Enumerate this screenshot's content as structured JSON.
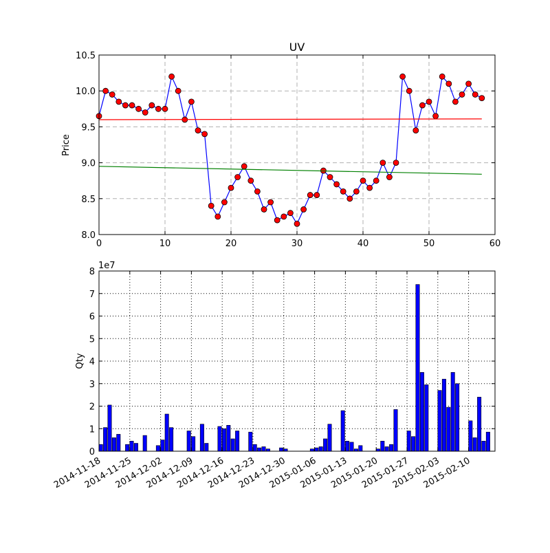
{
  "chart_data": [
    {
      "type": "line",
      "title": "UV",
      "xlabel": "",
      "ylabel": "Price",
      "xlim": [
        0,
        60
      ],
      "ylim": [
        8.0,
        10.5
      ],
      "xticks": [
        "0",
        "10",
        "20",
        "30",
        "40",
        "50",
        "60"
      ],
      "yticks": [
        "8.0",
        "8.5",
        "9.0",
        "9.5",
        "10.0",
        "10.5"
      ],
      "grid": "dashed",
      "series": [
        {
          "style": "line-markers",
          "color": "#0000ff",
          "marker_color": "#ff0000",
          "x": [
            0,
            1,
            2,
            3,
            4,
            5,
            6,
            7,
            8,
            9,
            10,
            11,
            12,
            13,
            14,
            15,
            16,
            17,
            18,
            19,
            20,
            21,
            22,
            23,
            24,
            25,
            26,
            27,
            28,
            29,
            30,
            31,
            32,
            33,
            34,
            35,
            36,
            37,
            38,
            39,
            40,
            41,
            42,
            43,
            44,
            45,
            46,
            47,
            48,
            49,
            50,
            51,
            52,
            53,
            54,
            55,
            56,
            57,
            58
          ],
          "values": [
            9.65,
            10.0,
            9.95,
            9.85,
            9.8,
            9.8,
            9.75,
            9.7,
            9.8,
            9.75,
            9.75,
            10.2,
            10.0,
            9.6,
            9.85,
            9.45,
            9.4,
            8.4,
            8.25,
            8.45,
            8.65,
            8.8,
            8.95,
            8.75,
            8.6,
            8.35,
            8.45,
            8.2,
            8.25,
            8.3,
            8.15,
            8.35,
            8.55,
            8.55,
            8.89,
            8.8,
            8.7,
            8.6,
            8.5,
            8.6,
            8.75,
            8.65,
            8.75,
            9.0,
            8.8,
            9.0,
            10.2,
            10.0,
            9.45,
            9.8,
            9.85,
            9.65,
            10.2,
            10.1,
            9.85,
            9.95,
            10.1,
            9.95,
            9.9
          ]
        },
        {
          "style": "line",
          "color": "#ff0000",
          "x": [
            0,
            58
          ],
          "values": [
            9.6,
            9.61
          ]
        },
        {
          "style": "line",
          "color": "#008000",
          "x": [
            0,
            58
          ],
          "values": [
            8.95,
            8.84
          ]
        }
      ]
    },
    {
      "type": "bar",
      "xlabel": "",
      "ylabel": "Qty",
      "ylim": [
        0,
        8
      ],
      "yticks": [
        "0",
        "1",
        "2",
        "3",
        "4",
        "5",
        "6",
        "7",
        "8"
      ],
      "yscale_label": "1e7",
      "grid": "dotted",
      "color": "#0000ff",
      "x_start": "2014-11-18",
      "x_end": "2015-02-16",
      "xticks": [
        "2014-11-18",
        "2014-11-25",
        "2014-12-02",
        "2014-12-09",
        "2014-12-16",
        "2014-12-23",
        "2014-12-30",
        "2015-01-06",
        "2015-01-13",
        "2015-01-20",
        "2015-01-27",
        "2015-02-03",
        "2015-02-10"
      ],
      "bars": [
        [
          "2014-11-18",
          0.3
        ],
        [
          "2014-11-19",
          1.05
        ],
        [
          "2014-11-20",
          2.05
        ],
        [
          "2014-11-21",
          0.6
        ],
        [
          "2014-11-22",
          0.75
        ],
        [
          "2014-11-24",
          0.3
        ],
        [
          "2014-11-25",
          0.45
        ],
        [
          "2014-11-26",
          0.35
        ],
        [
          "2014-11-28",
          0.7
        ],
        [
          "2014-12-01",
          0.25
        ],
        [
          "2014-12-02",
          0.5
        ],
        [
          "2014-12-03",
          1.65
        ],
        [
          "2014-12-04",
          1.05
        ],
        [
          "2014-12-08",
          0.9
        ],
        [
          "2014-12-09",
          0.65
        ],
        [
          "2014-12-11",
          1.2
        ],
        [
          "2014-12-12",
          0.35
        ],
        [
          "2014-12-15",
          1.1
        ],
        [
          "2014-12-16",
          1.0
        ],
        [
          "2014-12-17",
          1.15
        ],
        [
          "2014-12-18",
          0.55
        ],
        [
          "2014-12-19",
          0.9
        ],
        [
          "2014-12-22",
          0.85
        ],
        [
          "2014-12-23",
          0.3
        ],
        [
          "2014-12-24",
          0.15
        ],
        [
          "2014-12-25",
          0.2
        ],
        [
          "2014-12-26",
          0.1
        ],
        [
          "2014-12-29",
          0.15
        ],
        [
          "2014-12-30",
          0.1
        ],
        [
          "2015-01-05",
          0.1
        ],
        [
          "2015-01-06",
          0.15
        ],
        [
          "2015-01-07",
          0.2
        ],
        [
          "2015-01-08",
          0.55
        ],
        [
          "2015-01-09",
          1.2
        ],
        [
          "2015-01-12",
          1.8
        ],
        [
          "2015-01-13",
          0.45
        ],
        [
          "2015-01-14",
          0.4
        ],
        [
          "2015-01-15",
          0.1
        ],
        [
          "2015-01-16",
          0.25
        ],
        [
          "2015-01-20",
          0.1
        ],
        [
          "2015-01-21",
          0.45
        ],
        [
          "2015-01-22",
          0.2
        ],
        [
          "2015-01-23",
          0.3
        ],
        [
          "2015-01-24",
          1.85
        ],
        [
          "2015-01-27",
          0.9
        ],
        [
          "2015-01-28",
          0.65
        ],
        [
          "2015-01-29",
          7.4
        ],
        [
          "2015-01-30",
          3.5
        ],
        [
          "2015-01-31",
          2.95
        ],
        [
          "2015-02-03",
          2.7
        ],
        [
          "2015-02-04",
          3.2
        ],
        [
          "2015-02-05",
          1.95
        ],
        [
          "2015-02-06",
          3.5
        ],
        [
          "2015-02-07",
          3.0
        ],
        [
          "2015-02-10",
          1.35
        ],
        [
          "2015-02-11",
          0.6
        ],
        [
          "2015-02-12",
          2.4
        ],
        [
          "2015-02-13",
          0.45
        ],
        [
          "2015-02-14",
          0.85
        ]
      ]
    }
  ]
}
